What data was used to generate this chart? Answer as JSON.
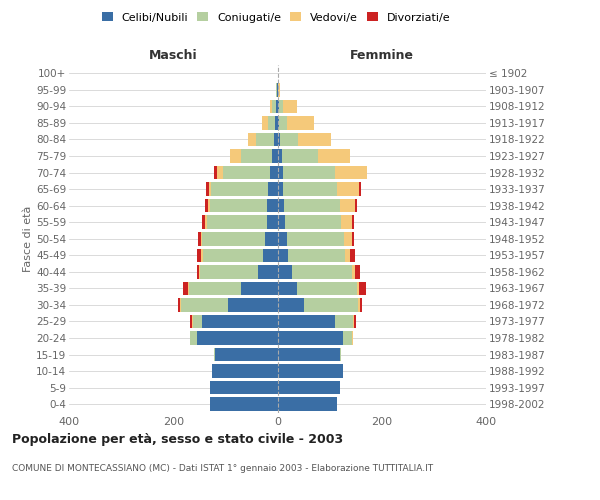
{
  "age_groups": [
    "100+",
    "95-99",
    "90-94",
    "85-89",
    "80-84",
    "75-79",
    "70-74",
    "65-69",
    "60-64",
    "55-59",
    "50-54",
    "45-49",
    "40-44",
    "35-39",
    "30-34",
    "25-29",
    "20-24",
    "15-19",
    "10-14",
    "5-9",
    "0-4"
  ],
  "birth_years": [
    "≤ 1902",
    "1903-1907",
    "1908-1912",
    "1913-1917",
    "1918-1922",
    "1923-1927",
    "1928-1932",
    "1933-1937",
    "1938-1942",
    "1943-1947",
    "1948-1952",
    "1953-1957",
    "1958-1962",
    "1963-1967",
    "1968-1972",
    "1973-1977",
    "1978-1982",
    "1983-1987",
    "1988-1992",
    "1993-1997",
    "1998-2002"
  ],
  "colors": {
    "celibi": "#3a6ea5",
    "coniugati": "#b5cfa0",
    "vedovi": "#f5c97a",
    "divorziati": "#cc2222"
  },
  "males": {
    "celibi": [
      0,
      1,
      2,
      4,
      6,
      10,
      15,
      18,
      20,
      20,
      24,
      28,
      38,
      70,
      95,
      145,
      155,
      120,
      125,
      130,
      130
    ],
    "coniugati": [
      0,
      1,
      8,
      15,
      35,
      60,
      90,
      110,
      110,
      115,
      120,
      115,
      110,
      100,
      90,
      18,
      12,
      2,
      1,
      0,
      0
    ],
    "vedovi": [
      0,
      0,
      5,
      10,
      15,
      22,
      12,
      4,
      4,
      4,
      3,
      3,
      2,
      2,
      2,
      1,
      1,
      0,
      0,
      0,
      0
    ],
    "divorziati": [
      0,
      0,
      0,
      0,
      0,
      0,
      5,
      5,
      5,
      5,
      5,
      8,
      5,
      10,
      4,
      4,
      0,
      0,
      0,
      0,
      0
    ]
  },
  "females": {
    "nubili": [
      0,
      0,
      2,
      3,
      5,
      8,
      10,
      10,
      12,
      14,
      18,
      20,
      28,
      38,
      50,
      110,
      125,
      120,
      125,
      120,
      115
    ],
    "coniugate": [
      0,
      1,
      8,
      15,
      35,
      70,
      100,
      105,
      108,
      108,
      110,
      110,
      115,
      115,
      105,
      35,
      18,
      2,
      1,
      0,
      0
    ],
    "vedove": [
      1,
      4,
      28,
      52,
      62,
      62,
      62,
      42,
      28,
      20,
      14,
      10,
      5,
      4,
      4,
      2,
      2,
      0,
      0,
      0,
      0
    ],
    "divorziate": [
      0,
      0,
      0,
      0,
      0,
      0,
      0,
      4,
      4,
      4,
      5,
      8,
      10,
      12,
      4,
      4,
      0,
      0,
      0,
      0,
      0
    ]
  },
  "xlim": 400,
  "title": "Popolazione per età, sesso e stato civile - 2003",
  "subtitle": "COMUNE DI MONTECASSIANO (MC) - Dati ISTAT 1° gennaio 2003 - Elaborazione TUTTITALIA.IT",
  "ylabel_left": "Fasce di età",
  "xlabel_left": "Maschi",
  "xlabel_right": "Femmine",
  "bg_color": "#ffffff",
  "grid_color": "#cccccc"
}
